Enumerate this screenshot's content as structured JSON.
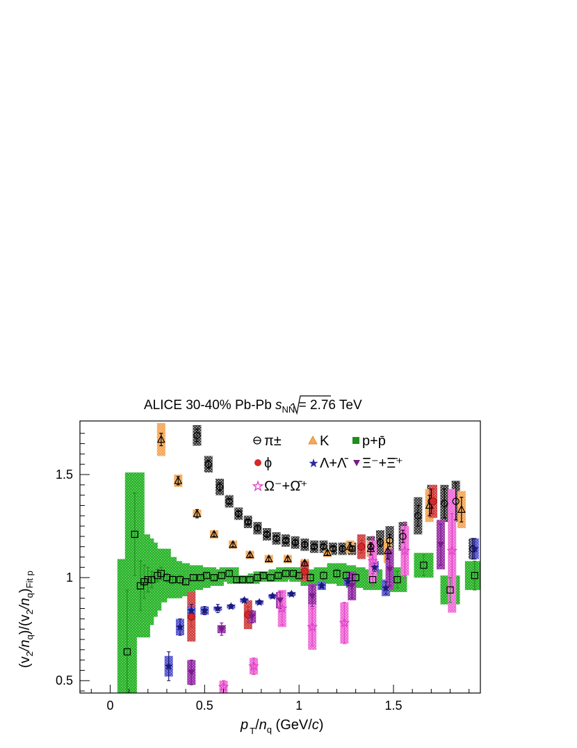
{
  "chart_data": {
    "type": "scatter",
    "title": "ALICE 30-40% Pb-Pb √s_NN = 2.76 TeV",
    "title_parts": {
      "prefix": "ALICE 30-40% Pb-Pb ",
      "sqrt_s": "s",
      "sub": "NN",
      "suffix": " = 2.76 TeV"
    },
    "xlabel": "p_T/n_q (GeV/c)",
    "xlabel_parts": {
      "p": "p",
      "T": "T",
      "slash": "/",
      "n": "n",
      "q": "q",
      "unit": " (GeV/",
      "c": "c",
      "close": ")"
    },
    "ylabel": "(v_2/n_q)/(v_2/n_q)_Fit p",
    "ylabel_parts": {
      "a": "(v",
      "b": "2",
      "c": "/n",
      "d": "q",
      "e": ")/(v",
      "f": "2",
      "g": "/n",
      "h": "q",
      "i": ")",
      "j": "Fit p"
    },
    "xlim": [
      -0.16,
      1.96
    ],
    "ylim": [
      0.44,
      1.76
    ],
    "x_ticks": [
      0,
      0.5,
      1,
      1.5
    ],
    "x_tick_labels": [
      "0",
      "0.5",
      "1",
      "1.5"
    ],
    "y_ticks": [
      0.5,
      1,
      1.5
    ],
    "y_tick_labels": [
      "0.5",
      "1",
      "1.5"
    ],
    "grid": false,
    "legend_position": "top-right inside",
    "legend": [
      {
        "label": "π±",
        "marker": "open-circle"
      },
      {
        "label": "K",
        "marker": "triangle"
      },
      {
        "label": "p+p̄",
        "marker": "square"
      },
      {
        "label": "ϕ",
        "marker": "circle"
      },
      {
        "label": "Λ+Λ̄",
        "marker": "star"
      },
      {
        "label": "Ξ⁻+Ξ̄⁺",
        "marker": "down-triangle"
      },
      {
        "label": "Ω⁻+Ω̄⁺",
        "marker": "open-star"
      }
    ],
    "series": [
      {
        "name": "π±",
        "marker": "open-circle",
        "color": "#000000",
        "band_color": "#3a3a3a",
        "x": [
          0.46,
          0.52,
          0.58,
          0.63,
          0.68,
          0.73,
          0.78,
          0.83,
          0.88,
          0.93,
          0.98,
          1.03,
          1.08,
          1.13,
          1.18,
          1.23,
          1.28,
          1.33,
          1.38,
          1.43,
          1.48,
          1.55,
          1.63,
          1.7,
          1.77,
          1.83,
          1.92
        ],
        "y": [
          1.69,
          1.55,
          1.44,
          1.37,
          1.31,
          1.27,
          1.24,
          1.21,
          1.19,
          1.18,
          1.17,
          1.16,
          1.15,
          1.15,
          1.14,
          1.14,
          1.14,
          1.15,
          1.15,
          1.17,
          1.18,
          1.2,
          1.3,
          1.37,
          1.36,
          1.37,
          1.14
        ],
        "band": [
          0.05,
          0.04,
          0.04,
          0.03,
          0.03,
          0.03,
          0.03,
          0.03,
          0.03,
          0.03,
          0.03,
          0.03,
          0.03,
          0.03,
          0.03,
          0.03,
          0.03,
          0.04,
          0.05,
          0.06,
          0.07,
          0.07,
          0.09,
          0.08,
          0.09,
          0.1,
          0.05
        ],
        "err": [
          0.03,
          0.02,
          0.02,
          0.01,
          0.01,
          0.01,
          0.01,
          0.01,
          0.01,
          0.01,
          0.01,
          0.01,
          0.01,
          0.01,
          0.01,
          0.01,
          0.01,
          0.01,
          0.01,
          0.02,
          0.03,
          0.03,
          0.05,
          0.06,
          0.07,
          0.09,
          0.05
        ]
      },
      {
        "name": "K",
        "marker": "triangle",
        "color": "#000000",
        "band_color": "#f5a95a",
        "x": [
          0.27,
          0.36,
          0.46,
          0.55,
          0.65,
          0.74,
          0.84,
          0.94,
          1.03,
          1.15,
          1.27,
          1.38,
          1.47,
          1.69,
          1.86
        ],
        "y": [
          1.67,
          1.47,
          1.31,
          1.21,
          1.16,
          1.11,
          1.09,
          1.09,
          1.07,
          1.12,
          1.15,
          1.14,
          1.13,
          1.35,
          1.33
        ],
        "band": [
          0.08,
          0.03,
          0.02,
          0.02,
          0.02,
          0.02,
          0.02,
          0.02,
          0.02,
          0.02,
          0.03,
          0.04,
          0.06,
          0.08,
          0.09
        ],
        "err": [
          0.03,
          0.02,
          0.02,
          0.01,
          0.01,
          0.01,
          0.01,
          0.01,
          0.01,
          0.01,
          0.02,
          0.03,
          0.04,
          0.05,
          0.06
        ]
      },
      {
        "name": "p+p̄",
        "marker": "square",
        "color": "#1e8f1e",
        "band_color": "#27b827",
        "x": [
          0.09,
          0.13,
          0.16,
          0.18,
          0.2,
          0.22,
          0.25,
          0.27,
          0.3,
          0.33,
          0.37,
          0.4,
          0.44,
          0.48,
          0.51,
          0.55,
          0.59,
          0.63,
          0.67,
          0.7,
          0.74,
          0.78,
          0.81,
          0.85,
          0.89,
          0.93,
          0.97,
          1.0,
          1.06,
          1.13,
          1.2,
          1.25,
          1.3,
          1.39,
          1.52,
          1.66,
          1.8,
          1.93
        ],
        "y": [
          0.64,
          1.21,
          0.96,
          0.98,
          0.99,
          0.99,
          1.01,
          1.02,
          1.0,
          0.99,
          0.99,
          0.98,
          1.0,
          1.0,
          1.01,
          1.0,
          1.01,
          1.02,
          0.99,
          0.99,
          0.99,
          1.0,
          1.01,
          1.0,
          1.01,
          1.02,
          1.02,
          1.01,
          1.0,
          1.01,
          1.02,
          1.01,
          1.0,
          0.99,
          0.99,
          1.06,
          0.94,
          1.01
        ],
        "band": [
          0.45,
          0.3,
          0.25,
          0.21,
          0.18,
          0.15,
          0.13,
          0.12,
          0.1,
          0.09,
          0.08,
          0.07,
          0.06,
          0.05,
          0.04,
          0.04,
          0.03,
          0.03,
          0.02,
          0.02,
          0.02,
          0.02,
          0.02,
          0.02,
          0.03,
          0.03,
          0.03,
          0.03,
          0.04,
          0.04,
          0.05,
          0.05,
          0.05,
          0.05,
          0.06,
          0.06,
          0.07,
          0.07
        ],
        "err": [
          0.3,
          0.2,
          0.12,
          0.08,
          0.06,
          0.04,
          0.03,
          0.03,
          0.02,
          0.02,
          0.02,
          0.01,
          0.01,
          0.01,
          0.01,
          0.01,
          0.01,
          0.01,
          0.01,
          0.01,
          0.01,
          0.01,
          0.01,
          0.01,
          0.01,
          0.01,
          0.01,
          0.01,
          0.02,
          0.02,
          0.02,
          0.02,
          0.02,
          0.03,
          0.04,
          0.05,
          0.06,
          0.07
        ]
      },
      {
        "name": "ϕ",
        "marker": "circle",
        "color": "#d62828",
        "band_color": "#d05050",
        "x": [
          0.43,
          0.73,
          1.03,
          1.33,
          1.71
        ],
        "y": [
          0.81,
          0.82,
          1.03,
          1.15,
          1.37
        ],
        "band": [
          0.12,
          0.07,
          0.05,
          0.06,
          0.08
        ],
        "err": [
          0.05,
          0.04,
          0.03,
          0.03,
          0.06
        ]
      },
      {
        "name": "Λ+Λ̄",
        "marker": "star",
        "color": "#1a1a7a",
        "band_color": "#5a5ad0",
        "x": [
          0.31,
          0.37,
          0.43,
          0.5,
          0.57,
          0.64,
          0.71,
          0.79,
          0.86,
          0.96,
          1.12,
          1.26,
          1.4,
          1.46,
          1.93
        ],
        "y": [
          0.57,
          0.76,
          0.84,
          0.84,
          0.85,
          0.86,
          0.89,
          0.88,
          0.91,
          0.92,
          0.96,
          0.98,
          1.05,
          0.95,
          1.14
        ],
        "band": [
          0.05,
          0.04,
          0.02,
          0.02,
          0.01,
          0.01,
          0.01,
          0.01,
          0.01,
          0.01,
          0.02,
          0.02,
          0.03,
          0.04,
          0.05
        ],
        "err": [
          0.07,
          0.04,
          0.03,
          0.02,
          0.02,
          0.01,
          0.01,
          0.01,
          0.01,
          0.01,
          0.01,
          0.02,
          0.02,
          0.03,
          0.05
        ]
      },
      {
        "name": "Ξ⁻+Ξ̄⁺",
        "marker": "down-triangle",
        "color": "#7a1a8a",
        "band_color": "#9a3aaa",
        "x": [
          0.43,
          0.59,
          0.75,
          0.9,
          1.07,
          1.28,
          1.48,
          1.75
        ],
        "y": [
          0.54,
          0.75,
          0.81,
          0.89,
          0.91,
          0.96,
          1.04,
          1.16
        ],
        "band": [
          0.06,
          0.02,
          0.03,
          0.04,
          0.06,
          0.07,
          0.1,
          0.12
        ],
        "err": [
          0.06,
          0.03,
          0.03,
          0.04,
          0.05,
          0.06,
          0.08,
          0.1
        ]
      },
      {
        "name": "Ω⁻+Ω̄⁺",
        "marker": "open-star",
        "color": "#e040c8",
        "band_color": "#f070d8",
        "x": [
          0.6,
          0.76,
          0.91,
          1.07,
          1.24,
          1.39,
          1.56,
          1.81
        ],
        "y": [
          0.47,
          0.57,
          0.85,
          0.76,
          0.78,
          1.08,
          1.13,
          1.13
        ],
        "band": [
          0.03,
          0.04,
          0.09,
          0.11,
          0.1,
          0.1,
          0.12,
          0.3
        ],
        "err": [
          0.03,
          0.04,
          0.08,
          0.09,
          0.1,
          0.12,
          0.14,
          0.18
        ]
      }
    ]
  }
}
